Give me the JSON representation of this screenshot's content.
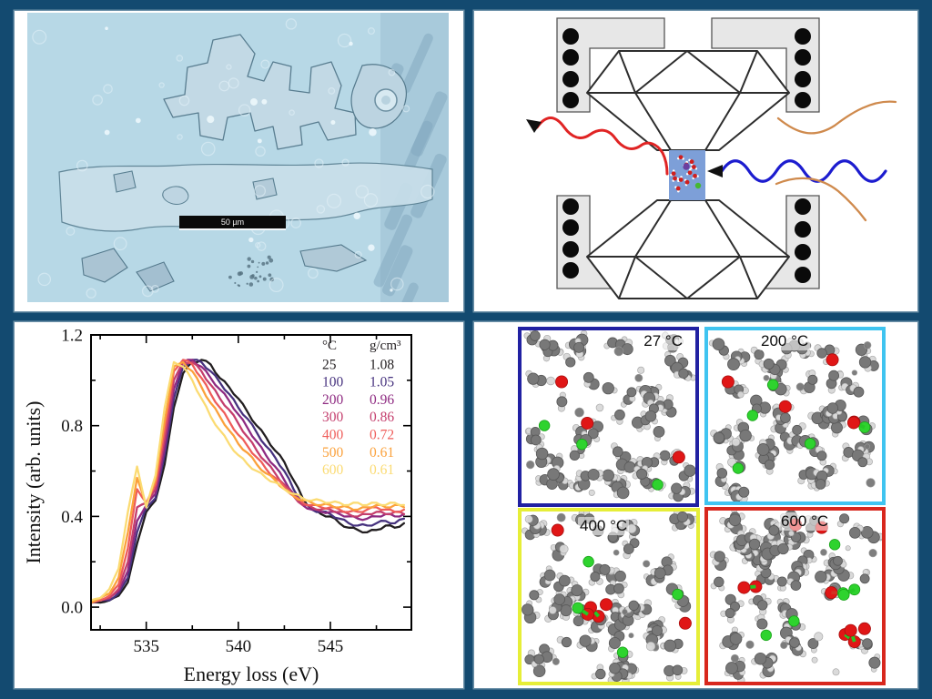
{
  "micrograph": {
    "scale_bar_label": "50 µm",
    "base_color": "#b7d8e6"
  },
  "dac": {
    "block_fill": "#e7e7e7",
    "block_stroke": "#555555",
    "coil_color": "#0a0a0a",
    "anvil_stroke": "#2d2d2d",
    "sample_fill": "#7d9fd8",
    "water_oxygen": "#cf1f1f",
    "water_hydrogen": "#ffffff",
    "impurity_purple": "#6a3fa0",
    "impurity_green": "#46b832",
    "laser_in_color": "#e02424",
    "laser_out_color": "#1c1ccf",
    "wire_color": "#cf8a4d"
  },
  "chart_data": {
    "type": "line",
    "title": "",
    "xlabel": "Energy loss (eV)",
    "ylabel": "Intensity (arb. units)",
    "xlim": [
      532,
      549.4
    ],
    "ylim": [
      -0.1,
      1.2
    ],
    "xticks_major": [
      535,
      540,
      545
    ],
    "xticks_minor": [
      532.5,
      537.5,
      542.5,
      547.5
    ],
    "yticks_major": [
      0.0,
      0.4,
      0.8,
      1.2
    ],
    "yticks_minor": [
      0.2,
      0.6,
      1.0
    ],
    "grid": false,
    "legend": {
      "position": "top-right",
      "col1_header": "°C",
      "col2_header": "g/cm³",
      "rows": [
        {
          "temperature": "25",
          "density": "1.08",
          "color": "#221e20"
        },
        {
          "temperature": "100",
          "density": "1.05",
          "color": "#46327e"
        },
        {
          "temperature": "200",
          "density": "0.96",
          "color": "#8e2a81"
        },
        {
          "temperature": "300",
          "density": "0.86",
          "color": "#c43e6d"
        },
        {
          "temperature": "400",
          "density": "0.72",
          "color": "#ef5d5a"
        },
        {
          "temperature": "500",
          "density": "0.61",
          "color": "#fba13b"
        },
        {
          "temperature": "600",
          "density": "0.61",
          "color": "#fbdb72"
        }
      ]
    },
    "x": [
      532,
      532.5,
      533,
      533.5,
      534,
      534.5,
      535,
      535.5,
      536,
      536.5,
      537,
      537.5,
      538,
      538.5,
      539,
      539.5,
      540,
      540.5,
      541,
      541.5,
      542,
      542.5,
      543,
      543.5,
      544,
      544.5,
      545,
      545.5,
      546,
      546.5,
      547,
      547.5,
      548,
      548.5,
      549
    ],
    "series": [
      {
        "name": "25",
        "color": "#221e20",
        "values": [
          0.02,
          0.02,
          0.03,
          0.05,
          0.11,
          0.28,
          0.42,
          0.47,
          0.63,
          0.88,
          1.03,
          1.08,
          1.09,
          1.07,
          1.01,
          0.97,
          0.92,
          0.86,
          0.8,
          0.75,
          0.69,
          0.64,
          0.56,
          0.48,
          0.43,
          0.41,
          0.4,
          0.37,
          0.35,
          0.34,
          0.33,
          0.34,
          0.36,
          0.35,
          0.37
        ]
      },
      {
        "name": "100",
        "color": "#46327e",
        "values": [
          0.02,
          0.03,
          0.03,
          0.06,
          0.13,
          0.33,
          0.44,
          0.48,
          0.67,
          0.92,
          1.06,
          1.09,
          1.08,
          1.04,
          0.99,
          0.94,
          0.88,
          0.83,
          0.77,
          0.71,
          0.66,
          0.6,
          0.52,
          0.46,
          0.43,
          0.42,
          0.41,
          0.39,
          0.37,
          0.36,
          0.36,
          0.37,
          0.38,
          0.37,
          0.39
        ]
      },
      {
        "name": "200",
        "color": "#8e2a81",
        "values": [
          0.02,
          0.03,
          0.04,
          0.07,
          0.16,
          0.38,
          0.45,
          0.5,
          0.7,
          0.96,
          1.08,
          1.09,
          1.06,
          1.01,
          0.96,
          0.91,
          0.85,
          0.79,
          0.73,
          0.67,
          0.62,
          0.56,
          0.5,
          0.45,
          0.43,
          0.42,
          0.42,
          0.41,
          0.4,
          0.39,
          0.39,
          0.4,
          0.41,
          0.4,
          0.41
        ]
      },
      {
        "name": "300",
        "color": "#c43e6d",
        "values": [
          0.02,
          0.03,
          0.04,
          0.08,
          0.2,
          0.44,
          0.46,
          0.52,
          0.74,
          1.0,
          1.08,
          1.08,
          1.04,
          0.98,
          0.92,
          0.87,
          0.81,
          0.75,
          0.69,
          0.64,
          0.59,
          0.54,
          0.49,
          0.45,
          0.44,
          0.43,
          0.43,
          0.42,
          0.41,
          0.4,
          0.41,
          0.42,
          0.41,
          0.42,
          0.41
        ]
      },
      {
        "name": "400",
        "color": "#ef5d5a",
        "values": [
          0.02,
          0.03,
          0.05,
          0.1,
          0.26,
          0.52,
          0.46,
          0.54,
          0.78,
          1.04,
          1.09,
          1.07,
          1.01,
          0.94,
          0.88,
          0.82,
          0.76,
          0.71,
          0.66,
          0.61,
          0.57,
          0.53,
          0.49,
          0.46,
          0.45,
          0.44,
          0.44,
          0.43,
          0.42,
          0.42,
          0.43,
          0.44,
          0.43,
          0.42,
          0.43
        ]
      },
      {
        "name": "500",
        "color": "#fba13b",
        "values": [
          0.02,
          0.04,
          0.06,
          0.13,
          0.33,
          0.57,
          0.45,
          0.56,
          0.82,
          1.06,
          1.08,
          1.04,
          0.97,
          0.9,
          0.84,
          0.78,
          0.72,
          0.68,
          0.63,
          0.59,
          0.56,
          0.52,
          0.49,
          0.47,
          0.46,
          0.45,
          0.45,
          0.44,
          0.44,
          0.43,
          0.44,
          0.45,
          0.44,
          0.45,
          0.44
        ]
      },
      {
        "name": "600",
        "color": "#fbdb72",
        "values": [
          0.03,
          0.04,
          0.08,
          0.17,
          0.42,
          0.62,
          0.44,
          0.58,
          0.88,
          1.08,
          1.06,
          1.0,
          0.92,
          0.84,
          0.78,
          0.72,
          0.67,
          0.63,
          0.6,
          0.57,
          0.55,
          0.52,
          0.5,
          0.48,
          0.47,
          0.47,
          0.46,
          0.46,
          0.45,
          0.46,
          0.45,
          0.46,
          0.45,
          0.46,
          0.45
        ]
      }
    ]
  },
  "md": {
    "atom_colors": {
      "carbon": "#787878",
      "hydrogen": "#d9d9d9",
      "oxygen": "#e01616",
      "green_species": "#2ed32e"
    },
    "panels": [
      {
        "label": "27 °C",
        "border_color": "#2121a2",
        "seed": 101,
        "molecules": 48,
        "lone_atoms": 10,
        "red_atoms": 3,
        "green_atoms": 3,
        "chains": 0
      },
      {
        "label": "200 °C",
        "border_color": "#3fc4f0",
        "seed": 202,
        "molecules": 50,
        "lone_atoms": 12,
        "red_atoms": 3,
        "green_atoms": 4,
        "chains": 1
      },
      {
        "label": "400 °C",
        "border_color": "#e6ee38",
        "seed": 303,
        "molecules": 47,
        "lone_atoms": 12,
        "red_atoms": 3,
        "green_atoms": 3,
        "chains": 2
      },
      {
        "label": "600 °C",
        "border_color": "#d8271d",
        "seed": 404,
        "molecules": 49,
        "lone_atoms": 12,
        "red_atoms": 3,
        "green_atoms": 3,
        "chains": 3
      }
    ]
  }
}
